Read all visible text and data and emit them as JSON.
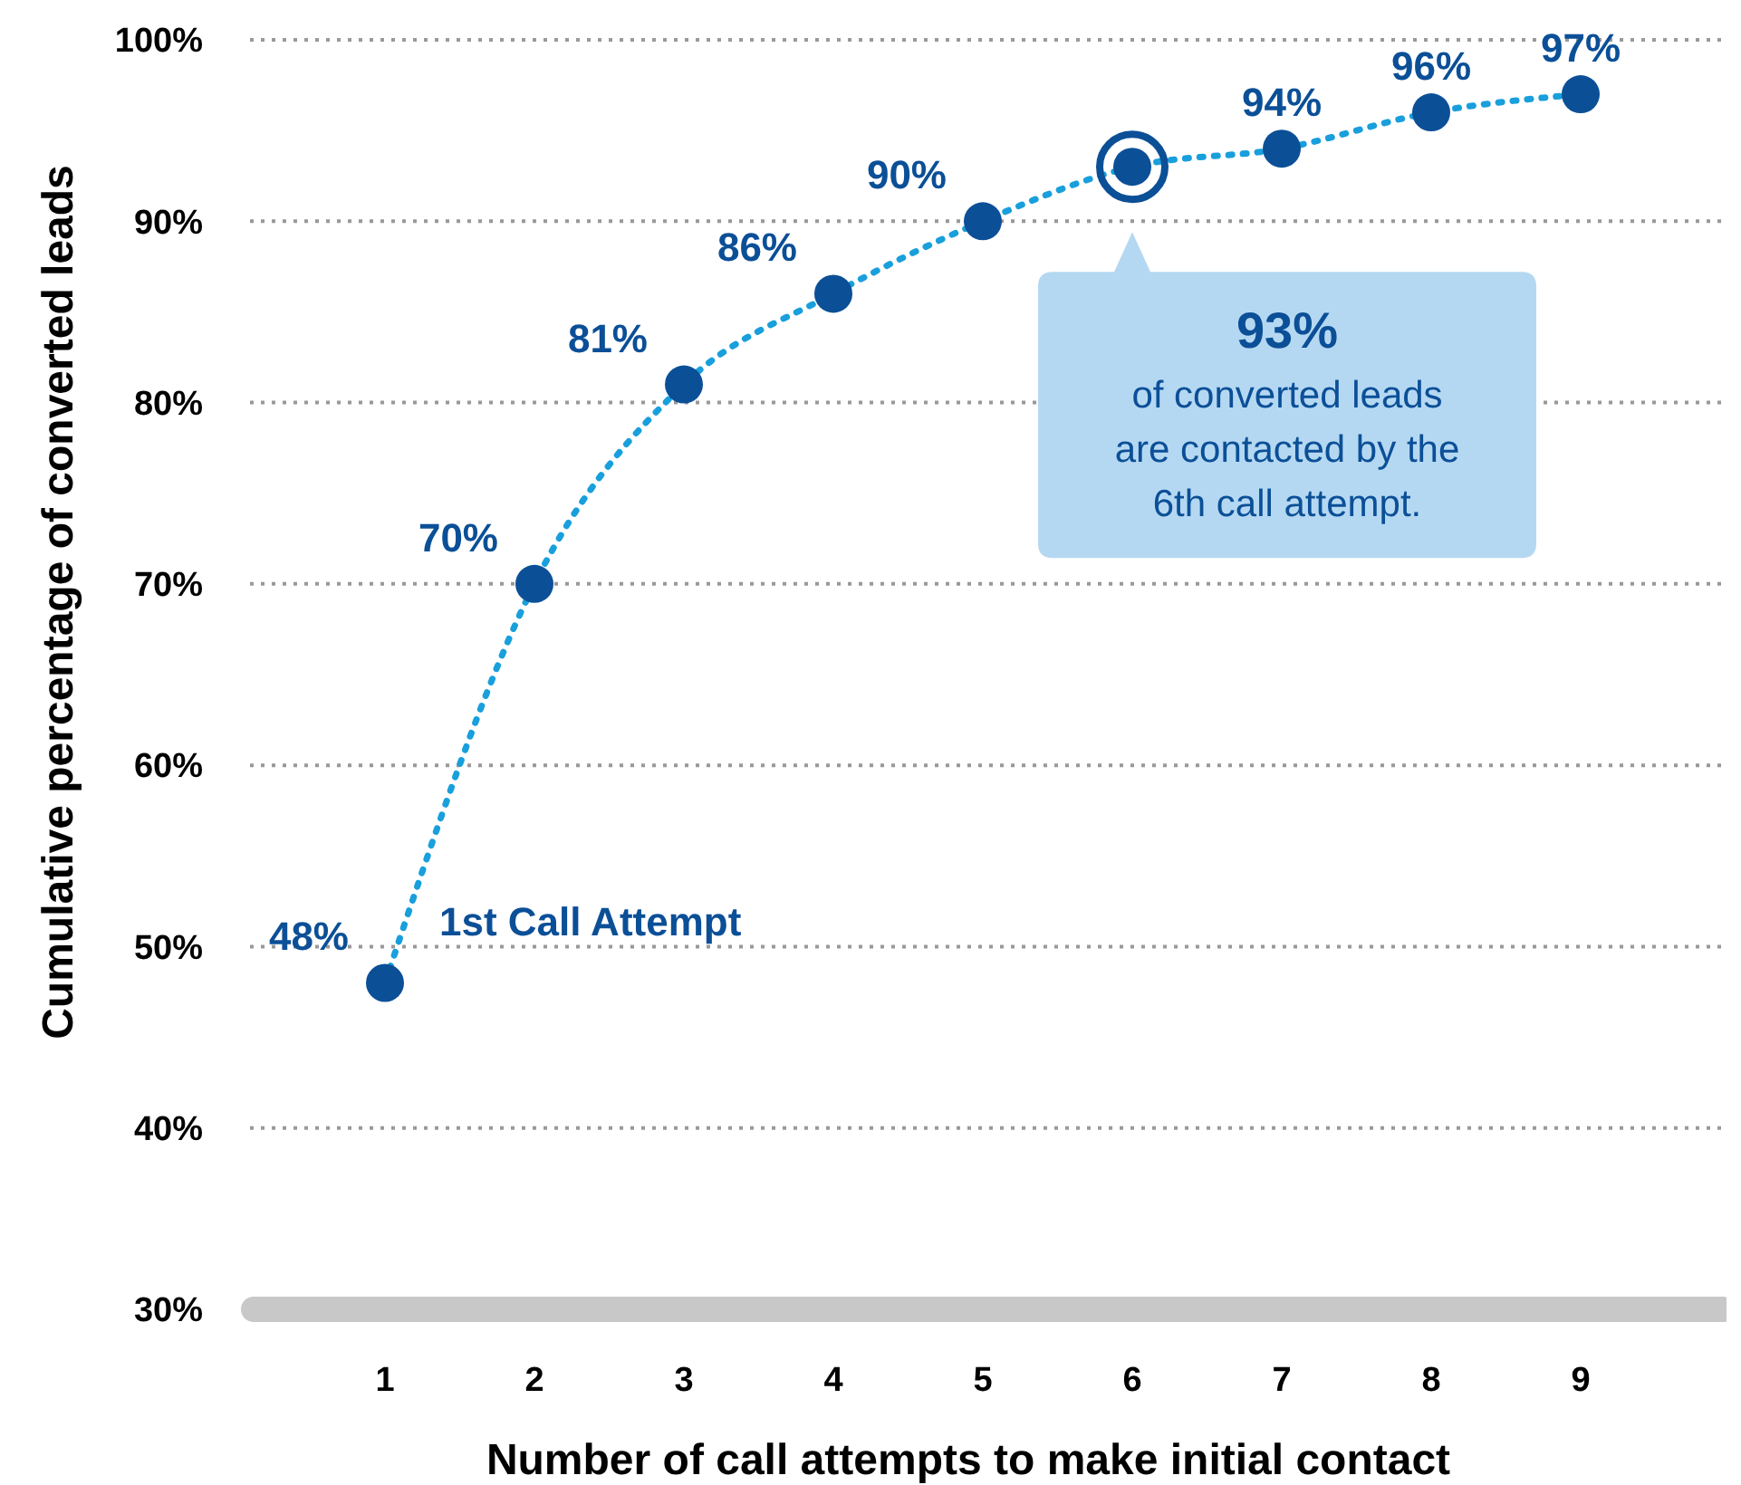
{
  "chart_data": {
    "type": "line",
    "xlabel": "Number of call attempts to make initial contact",
    "ylabel": "Cumulative percentage of converted leads",
    "categories": [
      "1",
      "2",
      "3",
      "4",
      "5",
      "6",
      "7",
      "8",
      "9"
    ],
    "series": [
      {
        "color": "#0b4f97",
        "values": [
          48,
          70,
          81,
          86,
          90,
          93,
          94,
          96,
          97
        ],
        "value_labels": [
          "48%",
          "70%",
          "81%",
          "86%",
          "90%",
          null,
          "94%",
          "96%",
          "97%"
        ]
      }
    ],
    "ylim": [
      30,
      100
    ],
    "yticks": [
      {
        "value": 30,
        "label": "30%"
      },
      {
        "value": 40,
        "label": "40%"
      },
      {
        "value": 50,
        "label": "50%"
      },
      {
        "value": 60,
        "label": "60%"
      },
      {
        "value": 70,
        "label": "70%"
      },
      {
        "value": 80,
        "label": "80%"
      },
      {
        "value": 90,
        "label": "90%"
      },
      {
        "value": 100,
        "label": "100%"
      }
    ],
    "grid": "y",
    "marker": "circle",
    "line_style": "dotted",
    "annotations": [
      {
        "text": "1st Call Attempt",
        "x": "1",
        "y": 48
      },
      {
        "text": "93% of converted leads are contacted by the 6th call attempt.",
        "x": "6",
        "y": 93
      }
    ]
  }
}
